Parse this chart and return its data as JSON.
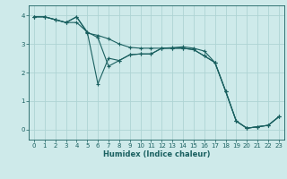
{
  "xlabel": "Humidex (Indice chaleur)",
  "background_color": "#ceeaea",
  "grid_color": "#aed4d4",
  "line_color": "#1a6060",
  "xlim": [
    -0.5,
    23.5
  ],
  "ylim": [
    -0.35,
    4.35
  ],
  "yticks": [
    0,
    1,
    2,
    3,
    4
  ],
  "xticks": [
    0,
    1,
    2,
    3,
    4,
    5,
    6,
    7,
    8,
    9,
    10,
    11,
    12,
    13,
    14,
    15,
    16,
    17,
    18,
    19,
    20,
    21,
    22,
    23
  ],
  "series": [
    {
      "x": [
        0,
        1,
        2,
        3,
        4,
        5,
        6,
        7,
        8,
        9,
        10,
        11,
        12,
        13,
        14,
        15,
        16,
        17,
        18,
        19,
        20,
        21,
        22,
        23
      ],
      "y": [
        3.95,
        3.95,
        3.85,
        3.75,
        3.95,
        3.42,
        1.6,
        2.5,
        2.42,
        2.62,
        2.65,
        2.65,
        2.85,
        2.87,
        2.9,
        2.85,
        2.75,
        2.35,
        1.35,
        0.3,
        0.05,
        0.1,
        0.15,
        0.45
      ]
    },
    {
      "x": [
        0,
        1,
        2,
        3,
        4,
        5,
        6,
        7,
        8,
        9,
        10,
        11,
        12,
        13,
        14,
        15,
        16,
        17,
        18,
        19,
        20,
        21,
        22,
        23
      ],
      "y": [
        3.95,
        3.95,
        3.85,
        3.75,
        3.95,
        3.38,
        3.3,
        3.18,
        3.0,
        2.88,
        2.85,
        2.85,
        2.85,
        2.85,
        2.85,
        2.8,
        2.58,
        2.35,
        1.35,
        0.3,
        0.05,
        0.1,
        0.15,
        0.45
      ]
    },
    {
      "x": [
        0,
        1,
        2,
        3,
        4,
        5,
        6,
        7,
        8,
        9,
        10,
        11,
        12,
        13,
        14,
        15,
        16,
        17,
        18,
        19,
        20,
        21,
        22,
        23
      ],
      "y": [
        3.95,
        3.95,
        3.85,
        3.75,
        3.75,
        3.42,
        3.22,
        2.22,
        2.42,
        2.62,
        2.65,
        2.65,
        2.85,
        2.85,
        2.85,
        2.8,
        2.58,
        2.35,
        1.35,
        0.3,
        0.05,
        0.1,
        0.15,
        0.45
      ]
    }
  ]
}
